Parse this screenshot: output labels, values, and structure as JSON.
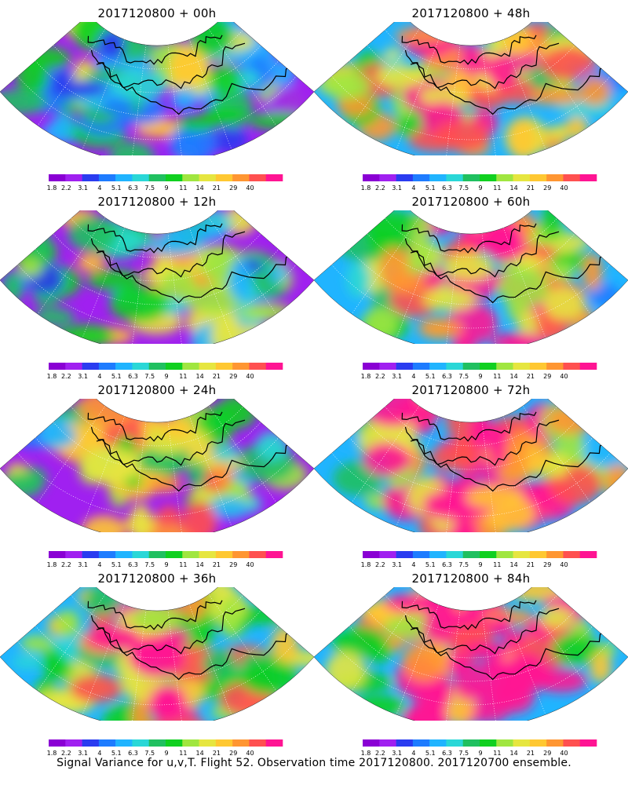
{
  "panels": [
    {
      "title": "2017120800 + 00h",
      "intensity": 0.25
    },
    {
      "title": "2017120800 + 48h",
      "intensity": 0.72
    },
    {
      "title": "2017120800 + 12h",
      "intensity": 0.35
    },
    {
      "title": "2017120800 + 60h",
      "intensity": 0.78
    },
    {
      "title": "2017120800 + 24h",
      "intensity": 0.5
    },
    {
      "title": "2017120800 + 72h",
      "intensity": 0.84
    },
    {
      "title": "2017120800 + 36h",
      "intensity": 0.62
    },
    {
      "title": "2017120800 + 84h",
      "intensity": 0.9
    }
  ],
  "colorbar": {
    "labels": [
      "1.8",
      "2.2",
      "3.1",
      "4",
      "5.1",
      "6.3",
      "7.5",
      "9",
      "11",
      "14",
      "21",
      "29",
      "40"
    ],
    "colors": [
      "#8a00d4",
      "#a020f0",
      "#2a3cf0",
      "#1e7cff",
      "#20b4ff",
      "#2ad7d7",
      "#20c060",
      "#10d020",
      "#a0e640",
      "#e6e640",
      "#ffc832",
      "#ff9632",
      "#ff5050",
      "#ff1493"
    ]
  },
  "footer": "Signal Variance for u,v,T. Flight 52. Observation time 2017120800. 2017120700 ensemble."
}
